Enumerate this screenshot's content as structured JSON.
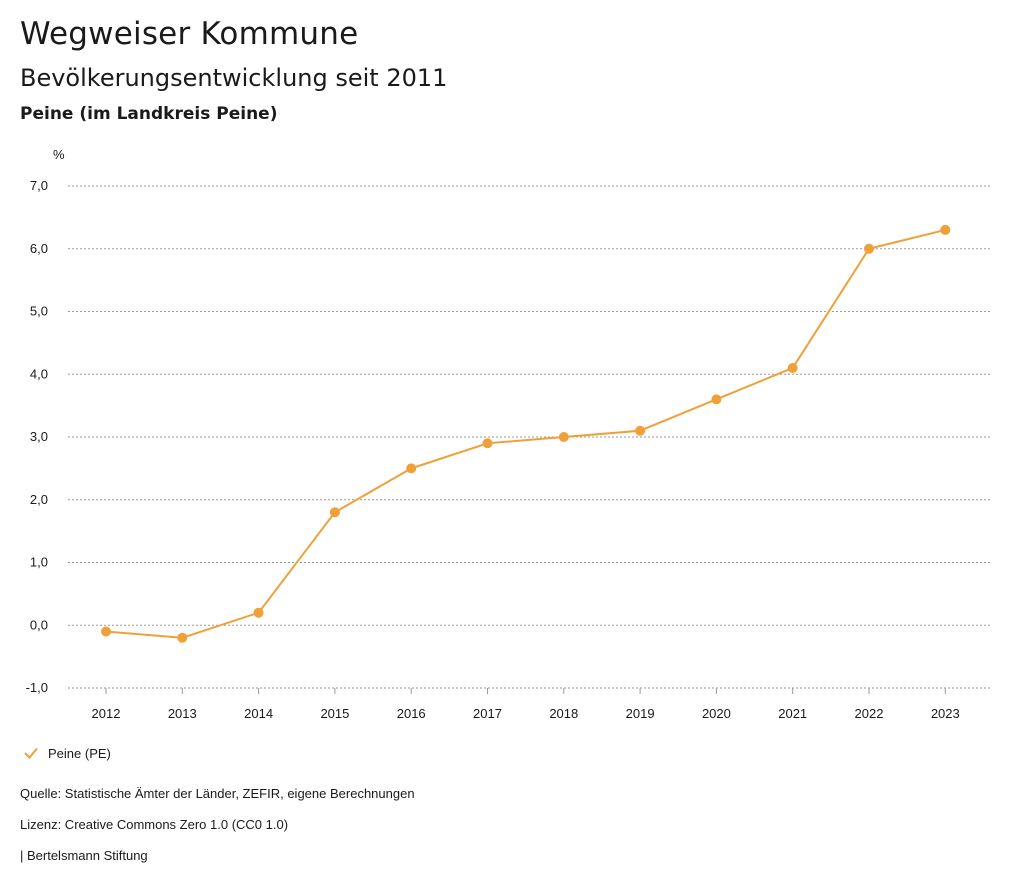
{
  "header": {
    "title": "Wegweiser Kommune",
    "subtitle": "Bevölkerungsentwicklung seit 2011",
    "region": "Peine (im Landkreis Peine)"
  },
  "chart_data": {
    "type": "line",
    "title": "Bevölkerungsentwicklung seit 2011",
    "ylabel": "%",
    "xlabel": "",
    "categories": [
      "2012",
      "2013",
      "2014",
      "2015",
      "2016",
      "2017",
      "2018",
      "2019",
      "2020",
      "2021",
      "2022",
      "2023"
    ],
    "series": [
      {
        "name": "Peine (PE)",
        "color": "#f0a038",
        "values": [
          -0.1,
          -0.2,
          0.2,
          1.8,
          2.5,
          2.9,
          3.0,
          3.1,
          3.6,
          4.1,
          6.0,
          6.3
        ]
      }
    ],
    "ylim": [
      -1.0,
      7.0
    ],
    "yticks": [
      -1.0,
      0.0,
      1.0,
      2.0,
      3.0,
      4.0,
      5.0,
      6.0,
      7.0
    ],
    "ytick_labels": [
      "-1,0",
      "0,0",
      "1,0",
      "2,0",
      "3,0",
      "4,0",
      "5,0",
      "6,0",
      "7,0"
    ],
    "grid": true,
    "legend": "bottom-left"
  },
  "legend": {
    "label": "Peine (PE)"
  },
  "footer": {
    "source": "Quelle: Statistische Ämter der Länder, ZEFIR, eigene Berechnungen",
    "license": "Lizenz: Creative Commons Zero 1.0 (CC0 1.0)",
    "brand": "| Bertelsmann Stiftung"
  }
}
